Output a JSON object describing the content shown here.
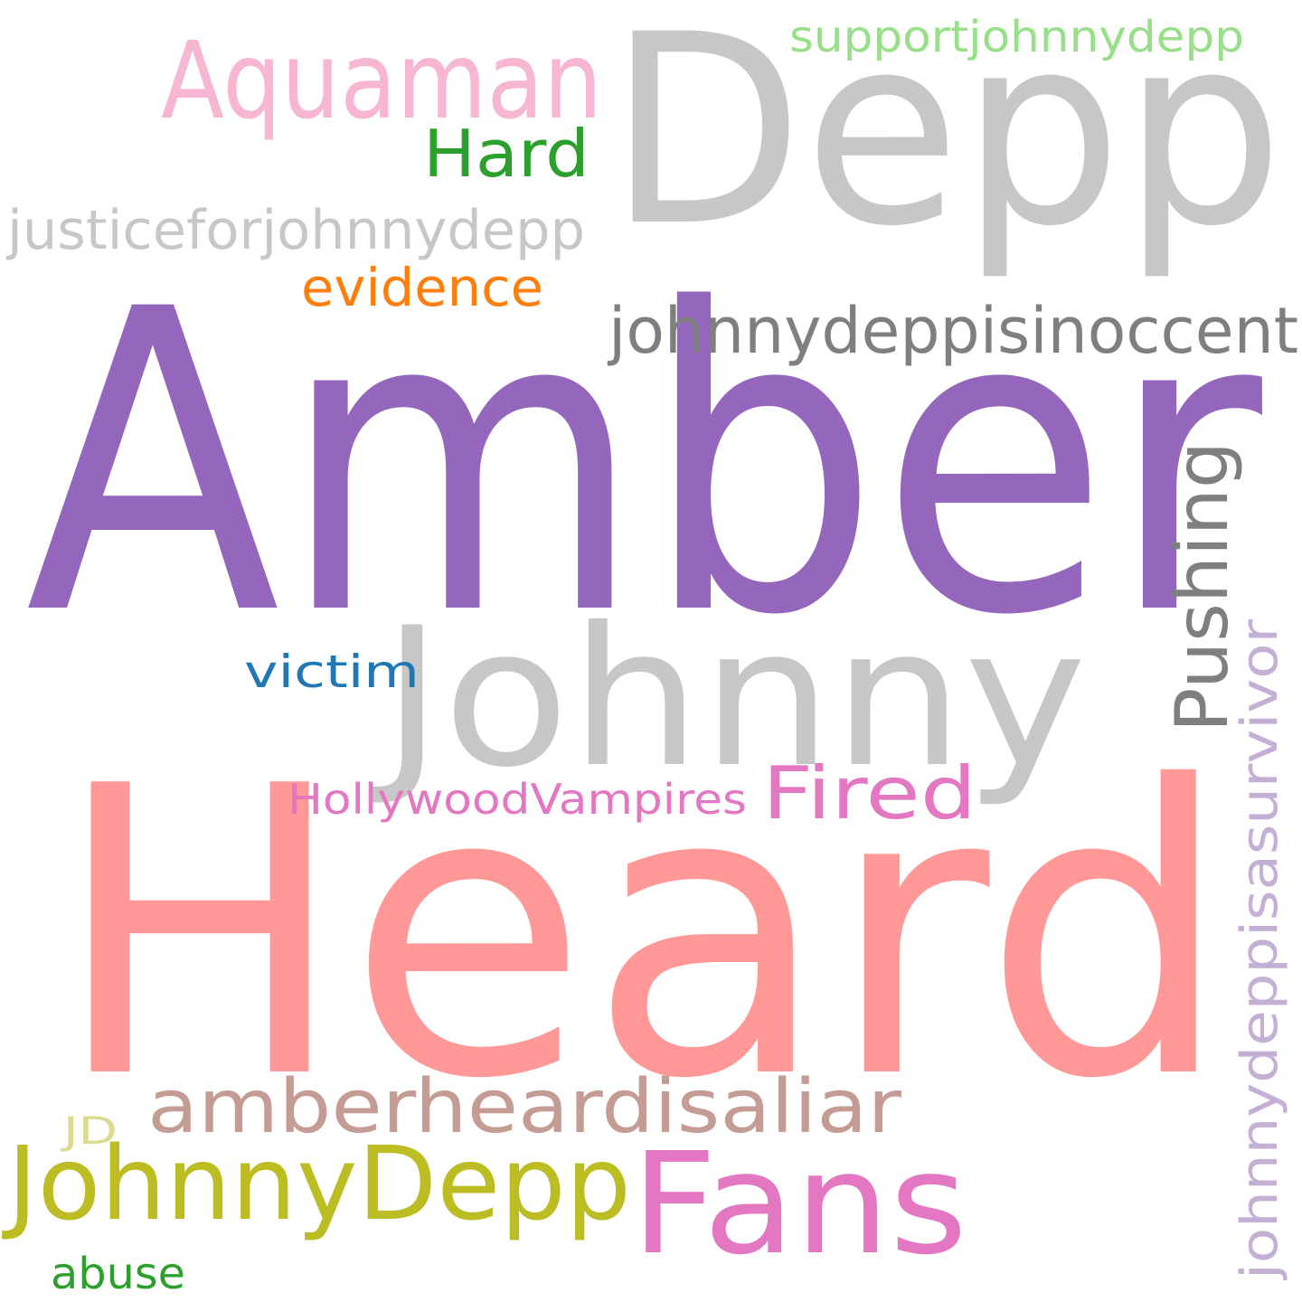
{
  "words": [
    {
      "text": "Depp",
      "color": "#c7c7c7"
    },
    {
      "text": "Amber",
      "color": "#9467bd"
    },
    {
      "text": "Heard",
      "color": "#ff9896"
    },
    {
      "text": "Johnny",
      "color": "#c7c7c7"
    },
    {
      "text": "Aquaman",
      "color": "#f7b6d2"
    },
    {
      "text": "supportjohnnydepp",
      "color": "#98df8a"
    },
    {
      "text": "Hard",
      "color": "#2ca02c"
    },
    {
      "text": "justiceforjohnnydepp",
      "color": "#c7c7c7"
    },
    {
      "text": "evidence",
      "color": "#ff7f0e"
    },
    {
      "text": "johnnydeppisinoccent",
      "color": "#7f7f7f"
    },
    {
      "text": "Pushing",
      "color": "#7f7f7f"
    },
    {
      "text": "johnnydeppisasurvivor",
      "color": "#c5b0d5"
    },
    {
      "text": "victim",
      "color": "#1f77b4"
    },
    {
      "text": "HollywoodVampires",
      "color": "#e377c2"
    },
    {
      "text": "Fired",
      "color": "#e377c2"
    },
    {
      "text": "amberheardisaliar",
      "color": "#c49c94"
    },
    {
      "text": "JD",
      "color": "#dbdb8d"
    },
    {
      "text": "JohnnyDepp",
      "color": "#bcbd22"
    },
    {
      "text": "Fans",
      "color": "#e377c2"
    },
    {
      "text": "abuse",
      "color": "#2ca02c"
    }
  ]
}
